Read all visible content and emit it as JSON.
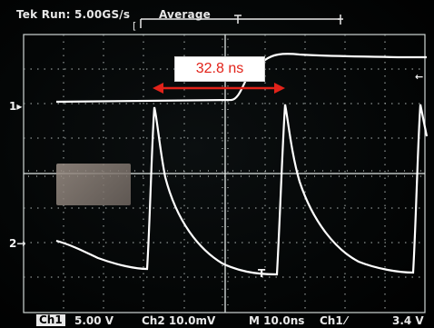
{
  "header": {
    "run_status": "Tek Run: 5.00GS/s",
    "acquire_mode": "Average"
  },
  "annotation": {
    "measurement": "32.8 ns",
    "arrow_color": "#e2231a"
  },
  "channel_markers": {
    "ch1": "1",
    "ch2": "2"
  },
  "footer": {
    "ch1_label": "Ch1",
    "ch1_scale": "5.00 V",
    "ch2_scale": "Ch2  10.0mV",
    "timebase": "M 10.0ns",
    "trigger_source": "Ch1",
    "trigger_level": "3.4 V"
  },
  "colors": {
    "trace": "#ffffff",
    "grid": "#cfd6d4",
    "background": "#050808"
  }
}
